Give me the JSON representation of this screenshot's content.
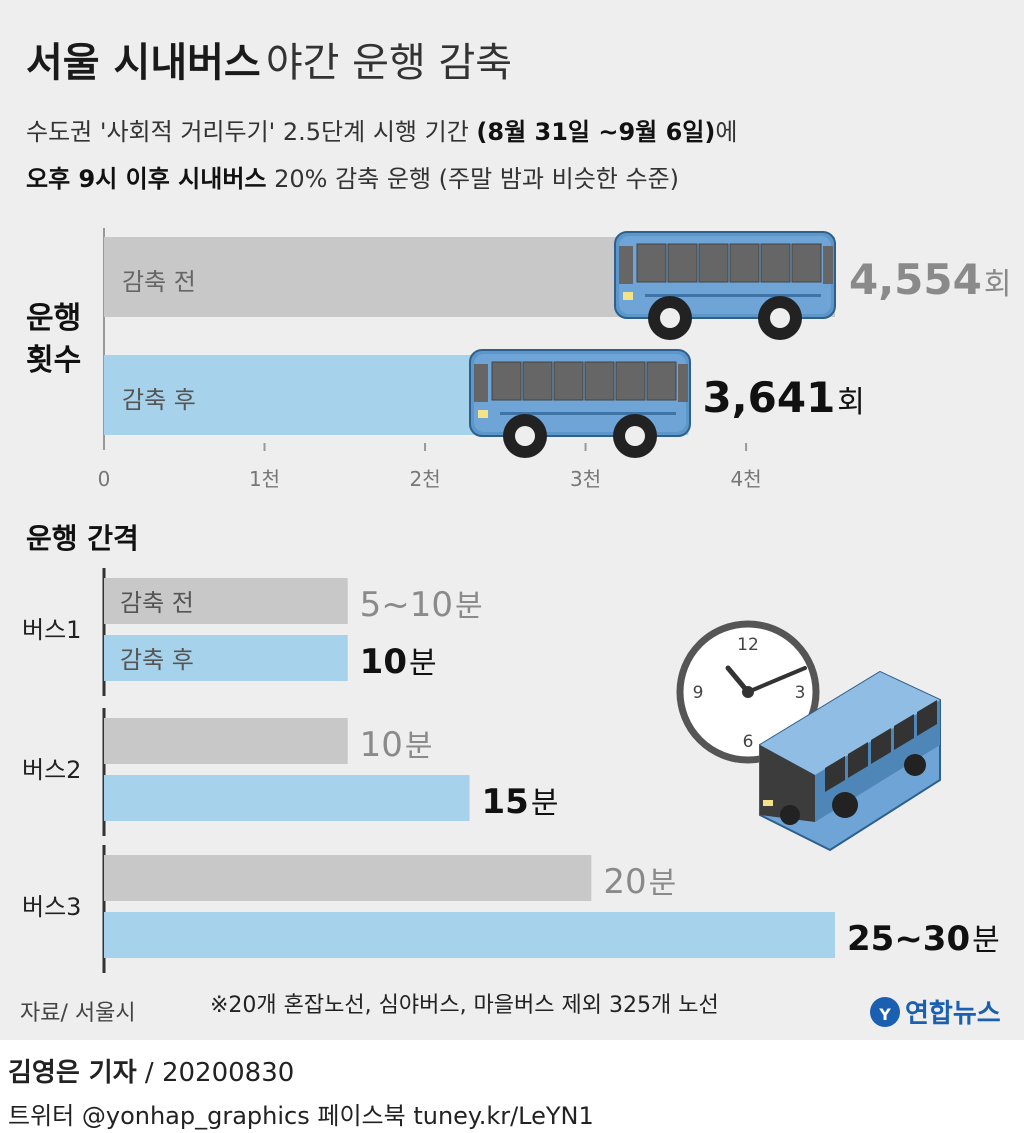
{
  "title": {
    "bold": "서울 시내버스",
    "light": "야간 운행 감축"
  },
  "subtitle": {
    "line1_pre": "수도권 '사회적 거리두기' 2.5단계 시행 기간 ",
    "line1_bold": "(8월 31일 ~9월 6일)",
    "line1_post": "에",
    "line2_bold": "오후 9시 이후 시내버스",
    "line2_post": " 20% 감축 운행 (주말 밤과 비슷한 수준)"
  },
  "chart_data": [
    {
      "type": "bar",
      "orientation": "horizontal",
      "ylabel": "운행 횟수",
      "categories": [
        "감축 전",
        "감축 후"
      ],
      "values": [
        4554,
        3641
      ],
      "value_labels": [
        "4,554",
        "3,641"
      ],
      "unit": "회",
      "xlim": [
        0,
        4554
      ],
      "xticks": [
        0,
        1000,
        2000,
        3000,
        4000
      ],
      "xtick_labels": [
        "0",
        "1천",
        "2천",
        "3천",
        "4천"
      ],
      "colors": [
        "#c8c8c8",
        "#a7d2ec"
      ]
    },
    {
      "type": "bar",
      "orientation": "horizontal",
      "title": "운행 간격",
      "unit": "분",
      "groups": [
        {
          "name": "버스1",
          "bars": [
            {
              "label": "감축 전",
              "value": 10,
              "value_label": "5~10"
            },
            {
              "label": "감축 후",
              "value": 10,
              "value_label": "10"
            }
          ]
        },
        {
          "name": "버스2",
          "bars": [
            {
              "label": "",
              "value": 10,
              "value_label": "10"
            },
            {
              "label": "",
              "value": 15,
              "value_label": "15"
            }
          ]
        },
        {
          "name": "버스3",
          "bars": [
            {
              "label": "",
              "value": 20,
              "value_label": "20"
            },
            {
              "label": "",
              "value": 30,
              "value_label": "25~30"
            }
          ]
        }
      ],
      "xlim": [
        0,
        30
      ],
      "colors": [
        "#c8c8c8",
        "#a7d2ec"
      ]
    }
  ],
  "clock_numbers": [
    "12",
    "3",
    "6",
    "9"
  ],
  "source": "자료/ 서울시",
  "note": "※20개 혼잡노선, 심야버스, 마을버스 제외 325개 노선",
  "logo": "연합뉴스",
  "byline": {
    "name": "김영은 기자",
    "date": " / 20200830"
  },
  "social": "트위터 @yonhap_graphics  페이스북 tuney.kr/LeYN1",
  "colors": {
    "before": "#c8c8c8",
    "after": "#a7d2ec",
    "bus": "#6ea5d6",
    "label_gray": "#8a8a8a",
    "logo": "#1a5fb0"
  }
}
